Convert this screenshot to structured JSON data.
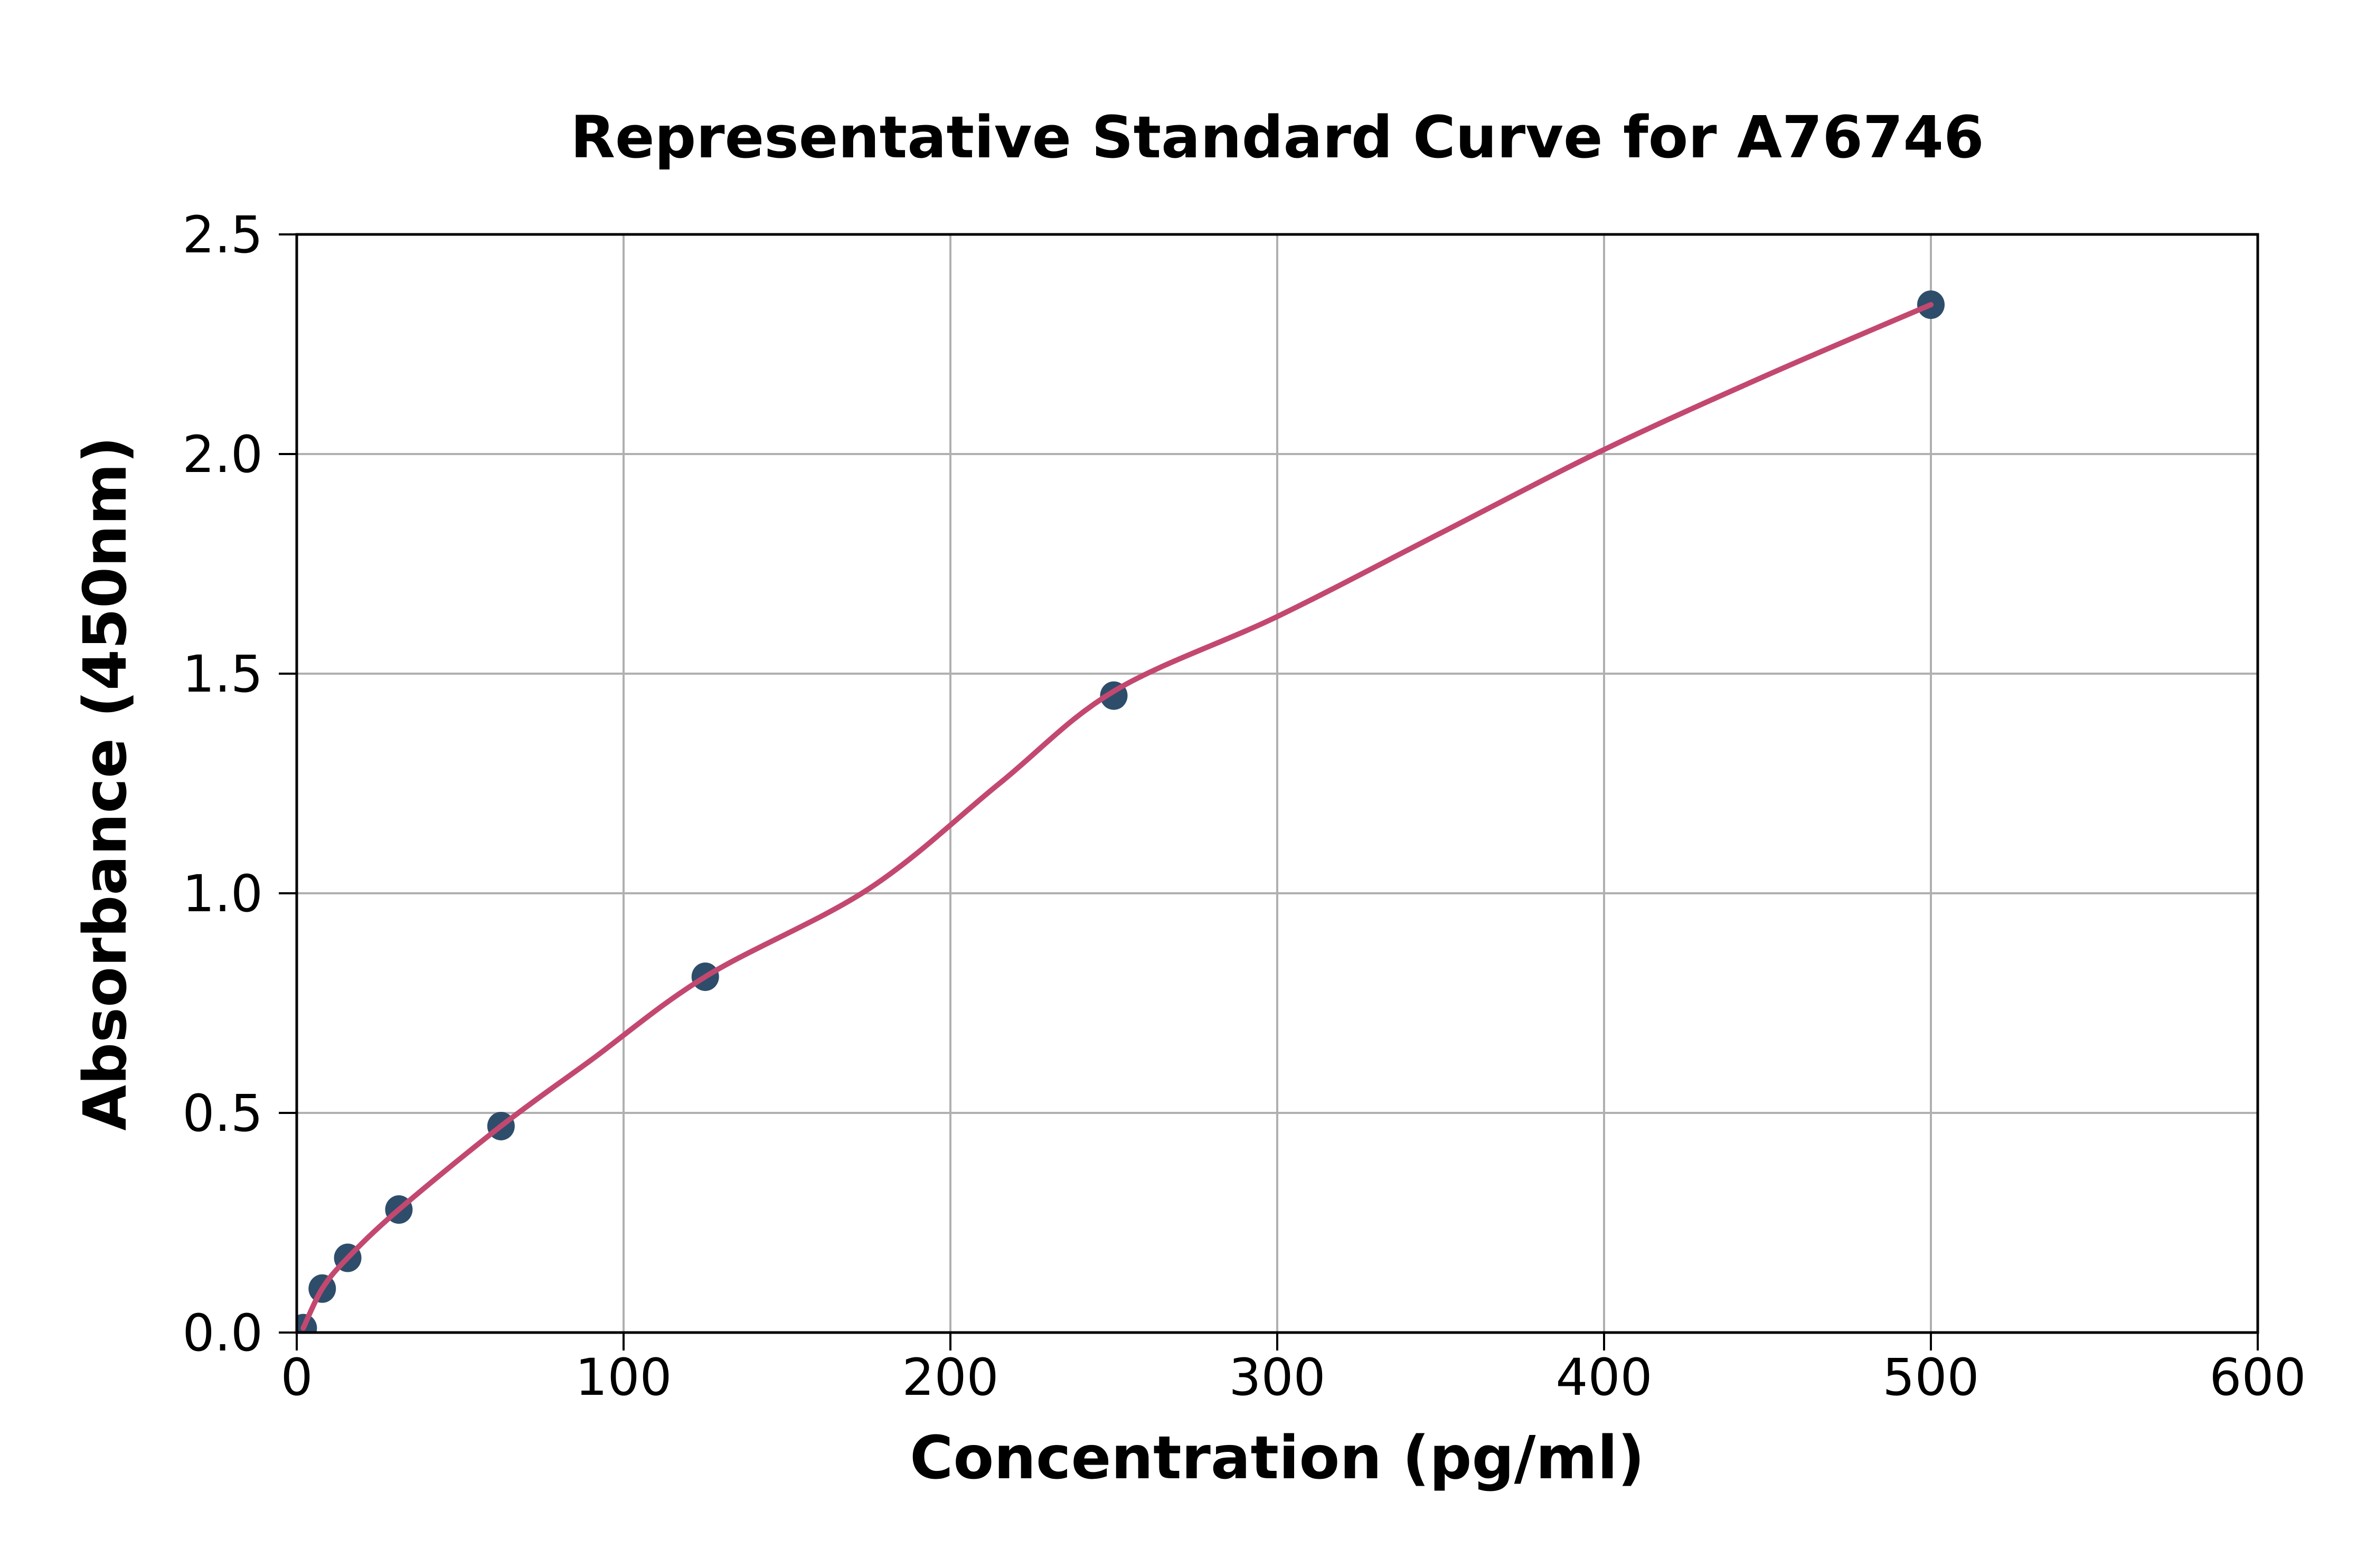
{
  "chart_data": {
    "type": "scatter",
    "title": "Representative Standard Curve for A76746",
    "xlabel": "Concentration (pg/ml)",
    "ylabel": "Absorbance (450nm)",
    "xlim": [
      0,
      600
    ],
    "ylim": [
      0,
      2.5
    ],
    "xticks": [
      "0",
      "100",
      "200",
      "300",
      "400",
      "500",
      "600"
    ],
    "yticks": [
      "0.0",
      "0.5",
      "1.0",
      "1.5",
      "2.0",
      "2.5"
    ],
    "grid": true,
    "legend_position": "none",
    "series": [
      {
        "name": "standard-points",
        "type": "scatter",
        "points": [
          [
            2,
            0.01
          ],
          [
            7.8,
            0.1
          ],
          [
            15.6,
            0.17
          ],
          [
            31.25,
            0.28
          ],
          [
            62.5,
            0.47
          ],
          [
            125,
            0.81
          ],
          [
            250,
            1.45
          ],
          [
            500,
            2.34
          ]
        ]
      },
      {
        "name": "fitted-curve",
        "type": "line",
        "points": [
          [
            2,
            0.01
          ],
          [
            7.8,
            0.1
          ],
          [
            15.6,
            0.17
          ],
          [
            31.25,
            0.28
          ],
          [
            62.5,
            0.47
          ],
          [
            90,
            0.62
          ],
          [
            125,
            0.81
          ],
          [
            175,
            1.01
          ],
          [
            215,
            1.25
          ],
          [
            250,
            1.46
          ],
          [
            300,
            1.63
          ],
          [
            350,
            1.82
          ],
          [
            400,
            2.01
          ],
          [
            450,
            2.18
          ],
          [
            500,
            2.34
          ]
        ]
      }
    ],
    "colors": {
      "curve": "#c3486f",
      "marker": "#2e4d6b",
      "grid": "#b0b0b0",
      "axis": "#000000",
      "background": "#ffffff"
    }
  }
}
